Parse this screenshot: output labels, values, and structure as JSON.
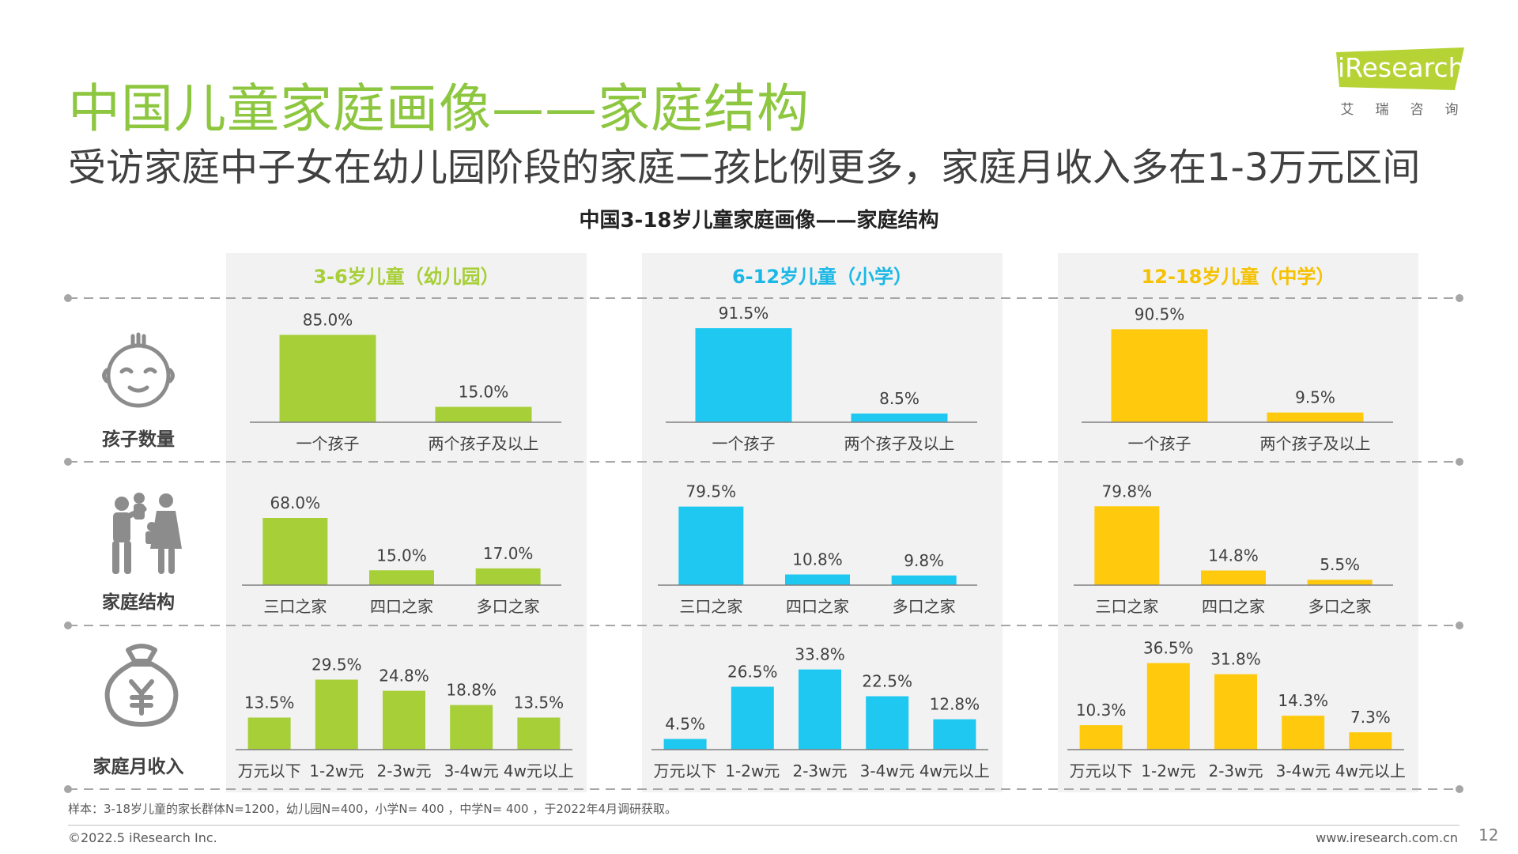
{
  "page": {
    "title": "中国儿童家庭画像——家庭结构",
    "subtitle": "受访家庭中子女在幼儿园阶段的家庭二孩比例更多，家庭月收入多在1-3万元区间",
    "chart_title": "中国3-18岁儿童家庭画像——家庭结构",
    "footnote": "样本：3-18岁儿童的家长群体N=1200，幼儿园N=400，小学N= 400 ，中学N= 400 ，于2022年4月调研获取。",
    "copyright": "©2022.5 iResearch Inc.",
    "url": "www.iresearch.com.cn",
    "page_number": "12"
  },
  "logo": {
    "text": "iResearch",
    "chars": [
      "艾",
      "瑞",
      "咨",
      "询"
    ]
  },
  "row_labels": [
    "孩子数量",
    "家庭结构",
    "家庭月收入"
  ],
  "icons": [
    "child-face-icon",
    "family-icon",
    "money-bag-icon"
  ],
  "colors": {
    "title": "#8dc63f",
    "kindergarten": "#a7cf38",
    "primary": "#1ec8f0",
    "middle": "#ffc90e",
    "panel_bg": "#f2f2f2",
    "axis": "#7f7f7f",
    "dash": "#a6a6a6"
  },
  "chart_data": [
    {
      "group": "3-6岁儿童（幼儿园）",
      "color": "#a7cf38",
      "title_color": "#a7cf38",
      "charts": [
        {
          "type": "bar",
          "metric": "孩子数量",
          "categories": [
            "一个孩子",
            "两个孩子及以上"
          ],
          "values": [
            85.0,
            15.0
          ],
          "labels": [
            "85.0%",
            "15.0%"
          ],
          "ylim": [
            0,
            100
          ]
        },
        {
          "type": "bar",
          "metric": "家庭结构",
          "categories": [
            "三口之家",
            "四口之家",
            "多口之家"
          ],
          "values": [
            68.0,
            15.0,
            17.0
          ],
          "labels": [
            "68.0%",
            "15.0%",
            "17.0%"
          ],
          "ylim": [
            0,
            100
          ]
        },
        {
          "type": "bar",
          "metric": "家庭月收入",
          "categories": [
            "万元以下",
            "1-2w元",
            "2-3w元",
            "3-4w元",
            "4w元以上"
          ],
          "values": [
            13.5,
            29.5,
            24.8,
            18.8,
            13.5
          ],
          "labels": [
            "13.5%",
            "29.5%",
            "24.8%",
            "18.8%",
            "13.5%"
          ],
          "ylim": [
            0,
            40
          ]
        }
      ]
    },
    {
      "group": "6-12岁儿童（小学）",
      "color": "#1ec8f0",
      "title_color": "#1ab8e6",
      "charts": [
        {
          "type": "bar",
          "metric": "孩子数量",
          "categories": [
            "一个孩子",
            "两个孩子及以上"
          ],
          "values": [
            91.5,
            8.5
          ],
          "labels": [
            "91.5%",
            "8.5%"
          ],
          "ylim": [
            0,
            100
          ]
        },
        {
          "type": "bar",
          "metric": "家庭结构",
          "categories": [
            "三口之家",
            "四口之家",
            "多口之家"
          ],
          "values": [
            79.5,
            10.8,
            9.8
          ],
          "labels": [
            "79.5%",
            "10.8%",
            "9.8%"
          ],
          "ylim": [
            0,
            100
          ]
        },
        {
          "type": "bar",
          "metric": "家庭月收入",
          "categories": [
            "万元以下",
            "1-2w元",
            "2-3w元",
            "3-4w元",
            "4w元以上"
          ],
          "values": [
            4.5,
            26.5,
            33.8,
            22.5,
            12.8
          ],
          "labels": [
            "4.5%",
            "26.5%",
            "33.8%",
            "22.5%",
            "12.8%"
          ],
          "ylim": [
            0,
            40
          ]
        }
      ]
    },
    {
      "group": "12-18岁儿童（中学）",
      "color": "#ffc90e",
      "title_color": "#f5c100",
      "charts": [
        {
          "type": "bar",
          "metric": "孩子数量",
          "categories": [
            "一个孩子",
            "两个孩子及以上"
          ],
          "values": [
            90.5,
            9.5
          ],
          "labels": [
            "90.5%",
            "9.5%"
          ],
          "ylim": [
            0,
            100
          ]
        },
        {
          "type": "bar",
          "metric": "家庭结构",
          "categories": [
            "三口之家",
            "四口之家",
            "多口之家"
          ],
          "values": [
            79.8,
            14.8,
            5.5
          ],
          "labels": [
            "79.8%",
            "14.8%",
            "5.5%"
          ],
          "ylim": [
            0,
            100
          ]
        },
        {
          "type": "bar",
          "metric": "家庭月收入",
          "categories": [
            "万元以下",
            "1-2w元",
            "2-3w元",
            "3-4w元",
            "4w元以上"
          ],
          "values": [
            10.3,
            36.5,
            31.8,
            14.3,
            7.3
          ],
          "labels": [
            "10.3%",
            "36.5%",
            "31.8%",
            "14.3%",
            "7.3%"
          ],
          "ylim": [
            0,
            40
          ]
        }
      ]
    }
  ]
}
